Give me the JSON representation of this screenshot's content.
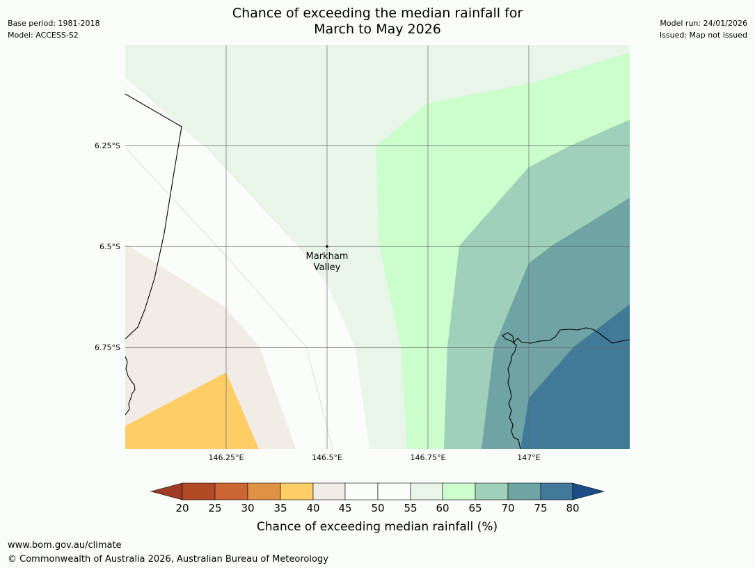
{
  "header": {
    "title_line1": "Chance of exceeding the median rainfall for",
    "title_line2": "March to May 2026",
    "base_period": "Base period: 1981-2018",
    "model": "Model: ACCESS-S2",
    "model_run": "Model run: 24/01/2026",
    "issued": "Issued: Map not issued"
  },
  "map": {
    "lat_labels": [
      "6.25°S",
      "6.5°S",
      "6.75°S"
    ],
    "lon_labels": [
      "146.25°E",
      "146.5°E",
      "146.75°E",
      "147°E"
    ],
    "place": {
      "line1": "Markham",
      "line2": "Valley"
    }
  },
  "legend": {
    "ticks": [
      "20",
      "25",
      "30",
      "35",
      "40",
      "45",
      "50",
      "55",
      "60",
      "65",
      "70",
      "75",
      "80"
    ],
    "colors": {
      "lt20": "#9e3a26",
      "20-25": "#b34a26",
      "25-30": "#cc6633",
      "30-35": "#e09244",
      "35-40": "#fdcd66",
      "40-45": "#f1ece6",
      "45-50": "#fbfdfa",
      "50-55": "#fbfdfa",
      "55-60": "#e9f5e9",
      "60-65": "#ccfdcc",
      "65-70": "#9ed0ba",
      "70-75": "#6fa3a4",
      "75-80": "#417a99",
      "gt80": "#1a4d88"
    },
    "label": "Chance of exceeding median rainfall (%)"
  },
  "footer": {
    "url": "www.bom.gov.au/climate",
    "copyright": "© Commonwealth of Australia 2026, Australian Bureau of Meteorology"
  }
}
